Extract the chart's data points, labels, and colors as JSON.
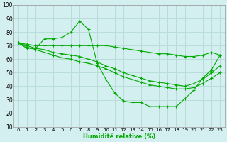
{
  "xlabel": "Humidité relative (%)",
  "ylabel": "",
  "background_color": "#d4efef",
  "grid_color": "#b8ddd8",
  "line_color": "#00aa00",
  "xlim": [
    -0.5,
    23.5
  ],
  "ylim": [
    10,
    100
  ],
  "xticks": [
    0,
    1,
    2,
    3,
    4,
    5,
    6,
    7,
    8,
    9,
    10,
    11,
    12,
    13,
    14,
    15,
    16,
    17,
    18,
    19,
    20,
    21,
    22,
    23
  ],
  "yticks": [
    10,
    20,
    30,
    40,
    50,
    60,
    70,
    80,
    90,
    100
  ],
  "lines": [
    {
      "x": [
        0,
        1,
        2,
        3,
        4,
        5,
        6,
        7,
        8,
        9,
        10,
        11,
        12,
        13,
        14,
        15,
        16,
        17,
        18,
        19,
        20,
        21,
        22,
        23
      ],
      "y": [
        72,
        68,
        68,
        75,
        75,
        76,
        80,
        88,
        82,
        57,
        45,
        35,
        29,
        28,
        28,
        25,
        25,
        25,
        25,
        31,
        37,
        46,
        52,
        63
      ]
    },
    {
      "x": [
        0,
        1,
        2,
        3,
        4,
        5,
        6,
        7,
        8,
        9,
        10,
        11,
        12,
        13,
        14,
        15,
        16,
        17,
        18,
        19,
        20,
        21,
        22,
        23
      ],
      "y": [
        72,
        71,
        70,
        70,
        70,
        70,
        70,
        70,
        70,
        70,
        70,
        69,
        68,
        67,
        66,
        65,
        64,
        64,
        63,
        62,
        62,
        63,
        65,
        63
      ]
    },
    {
      "x": [
        0,
        1,
        2,
        3,
        4,
        5,
        6,
        7,
        8,
        9,
        10,
        11,
        12,
        13,
        14,
        15,
        16,
        17,
        18,
        19,
        20,
        21,
        22,
        23
      ],
      "y": [
        72,
        70,
        68,
        67,
        65,
        64,
        63,
        62,
        60,
        58,
        55,
        53,
        50,
        48,
        46,
        44,
        43,
        42,
        41,
        40,
        42,
        45,
        50,
        55
      ]
    },
    {
      "x": [
        0,
        1,
        2,
        3,
        4,
        5,
        6,
        7,
        8,
        9,
        10,
        11,
        12,
        13,
        14,
        15,
        16,
        17,
        18,
        19,
        20,
        21,
        22,
        23
      ],
      "y": [
        72,
        69,
        67,
        65,
        63,
        61,
        60,
        58,
        57,
        55,
        53,
        50,
        47,
        45,
        43,
        41,
        40,
        39,
        38,
        38,
        39,
        42,
        46,
        50
      ]
    }
  ]
}
